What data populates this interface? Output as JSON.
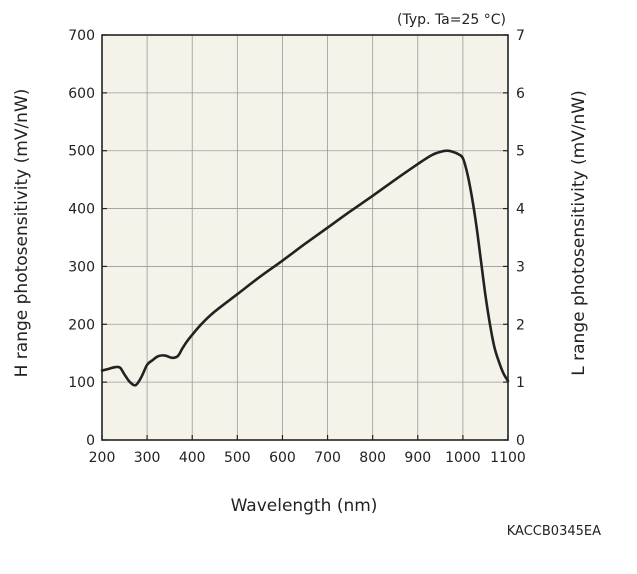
{
  "chart_data": {
    "type": "line",
    "title": "",
    "annotation": "(Typ. Ta=25 °C)",
    "xlabel": "Wavelength (nm)",
    "ylabel_left": "H range photosensitivity (mV/nW)",
    "ylabel_right": "L range photosensitivity (mV/nW)",
    "xlim": [
      200,
      1100
    ],
    "ylim_left": [
      0,
      700
    ],
    "ylim_right": [
      0,
      7
    ],
    "x_ticks": [
      200,
      300,
      400,
      500,
      600,
      700,
      800,
      900,
      1000,
      1100
    ],
    "y_ticks_left": [
      0,
      100,
      200,
      300,
      400,
      500,
      600,
      700
    ],
    "y_ticks_right": [
      0,
      1,
      2,
      3,
      4,
      5,
      6,
      7
    ],
    "grid": true,
    "plot_background": "#f5f3e9",
    "line_color": "#222222",
    "series": [
      {
        "x": [
          200,
          215,
          230,
          240,
          250,
          262,
          275,
          288,
          300,
          312,
          325,
          340,
          355,
          368,
          378,
          388,
          398,
          420,
          450,
          500,
          550,
          600,
          650,
          700,
          750,
          800,
          850,
          900,
          930,
          950,
          965,
          978,
          990,
          1000,
          1010,
          1020,
          1030,
          1040,
          1050,
          1060,
          1070,
          1080,
          1090,
          1100
        ],
        "y": [
          120,
          123,
          126,
          125,
          113,
          100,
          95,
          110,
          130,
          138,
          145,
          146,
          142,
          145,
          158,
          170,
          180,
          200,
          222,
          252,
          282,
          310,
          339,
          367,
          395,
          422,
          450,
          477,
          492,
          498,
          500,
          498,
          494,
          487,
          460,
          420,
          370,
          310,
          250,
          200,
          160,
          135,
          115,
          102
        ]
      }
    ]
  },
  "footer": {
    "code": "KACCB0345EA"
  }
}
